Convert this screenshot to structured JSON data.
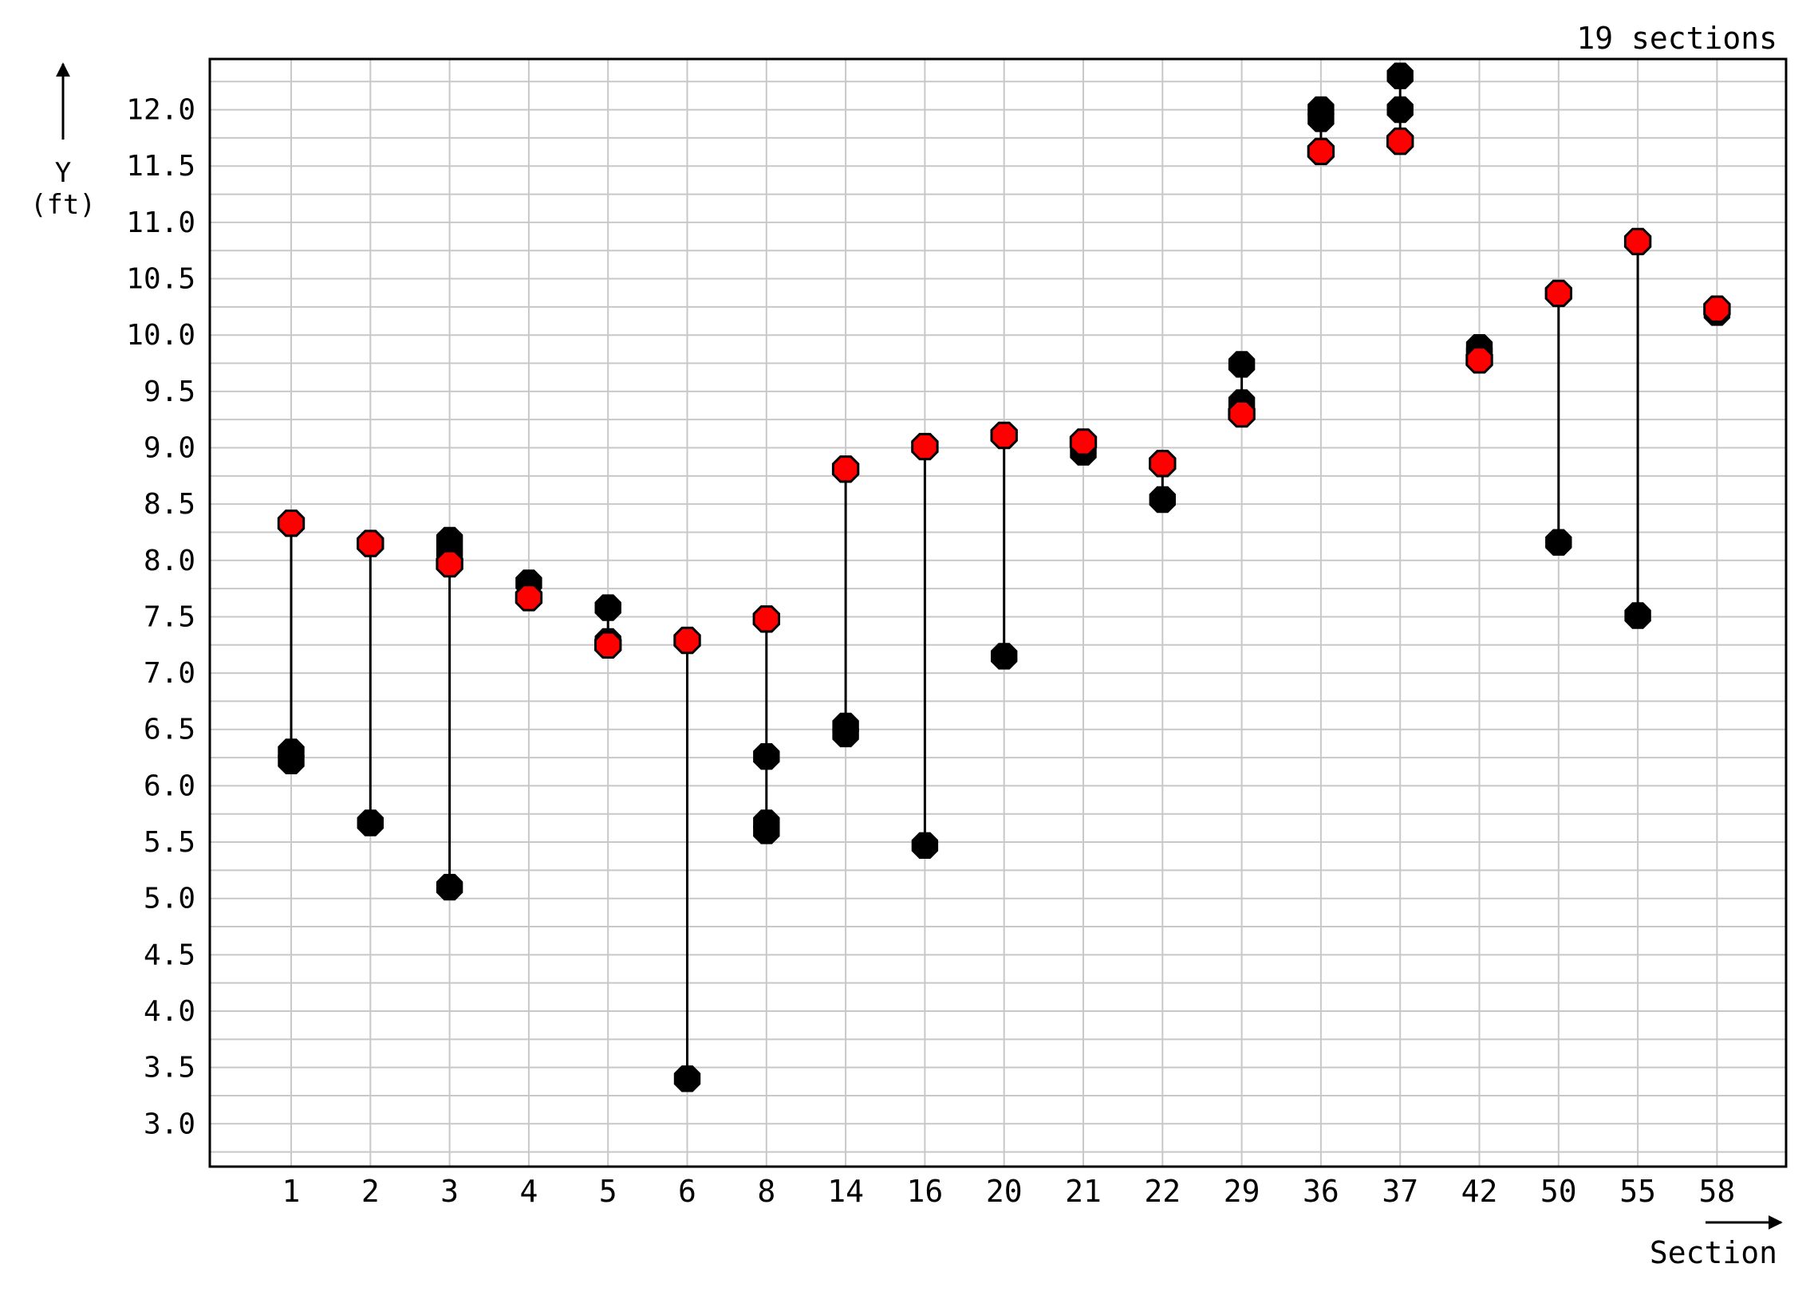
{
  "chart_data": {
    "type": "scatter",
    "section_count_label": "19 sections",
    "ylabel_line1": "Y",
    "ylabel_line2": "(ft)",
    "xlabel": "Section",
    "ylim": [
      2.62,
      12.45
    ],
    "y_ticks": [
      "3.0",
      "3.5",
      "4.0",
      "4.5",
      "5.0",
      "5.5",
      "6.0",
      "6.5",
      "7.0",
      "7.5",
      "8.0",
      "8.5",
      "9.0",
      "9.5",
      "10.0",
      "10.5",
      "11.0",
      "11.5",
      "12.0"
    ],
    "categories": [
      "1",
      "2",
      "3",
      "4",
      "5",
      "6",
      "8",
      "14",
      "16",
      "20",
      "21",
      "22",
      "29",
      "36",
      "37",
      "42",
      "50",
      "55",
      "58"
    ],
    "grid": true,
    "colors": {
      "red_marker": "#ff0000",
      "black_marker": "#000000",
      "grid": "#c8c8c8",
      "frame": "#000000"
    },
    "points": [
      {
        "section": "1",
        "red": 8.33,
        "black": [
          6.3,
          6.22
        ]
      },
      {
        "section": "2",
        "red": 8.15,
        "black": [
          5.67
        ]
      },
      {
        "section": "3",
        "red": 7.97,
        "black": [
          8.18,
          8.08,
          5.1
        ]
      },
      {
        "section": "4",
        "red": 7.67,
        "black": [
          7.8
        ]
      },
      {
        "section": "5",
        "red": 7.25,
        "black": [
          7.58,
          7.28
        ]
      },
      {
        "section": "6",
        "red": 7.29,
        "black": [
          3.4
        ]
      },
      {
        "section": "8",
        "red": 7.48,
        "black": [
          6.26,
          5.67,
          5.6
        ]
      },
      {
        "section": "14",
        "red": 8.81,
        "black": [
          6.53,
          6.46
        ]
      },
      {
        "section": "16",
        "red": 9.01,
        "black": [
          5.47
        ]
      },
      {
        "section": "20",
        "red": 9.11,
        "black": [
          7.15
        ]
      },
      {
        "section": "21",
        "red": 9.05,
        "black": [
          8.96
        ]
      },
      {
        "section": "22",
        "red": 8.86,
        "black": [
          8.54
        ]
      },
      {
        "section": "29",
        "red": 9.3,
        "black": [
          9.74,
          9.4
        ]
      },
      {
        "section": "36",
        "red": 11.63,
        "black": [
          12.0,
          11.92
        ]
      },
      {
        "section": "37",
        "red": 11.72,
        "black": [
          12.3,
          12.0
        ]
      },
      {
        "section": "42",
        "red": 9.78,
        "black": [
          9.89,
          9.84
        ]
      },
      {
        "section": "50",
        "red": 10.37,
        "black": [
          8.16
        ]
      },
      {
        "section": "55",
        "red": 10.83,
        "black": [
          7.51
        ]
      },
      {
        "section": "58",
        "red": 10.23,
        "black": [
          10.2
        ]
      }
    ]
  }
}
